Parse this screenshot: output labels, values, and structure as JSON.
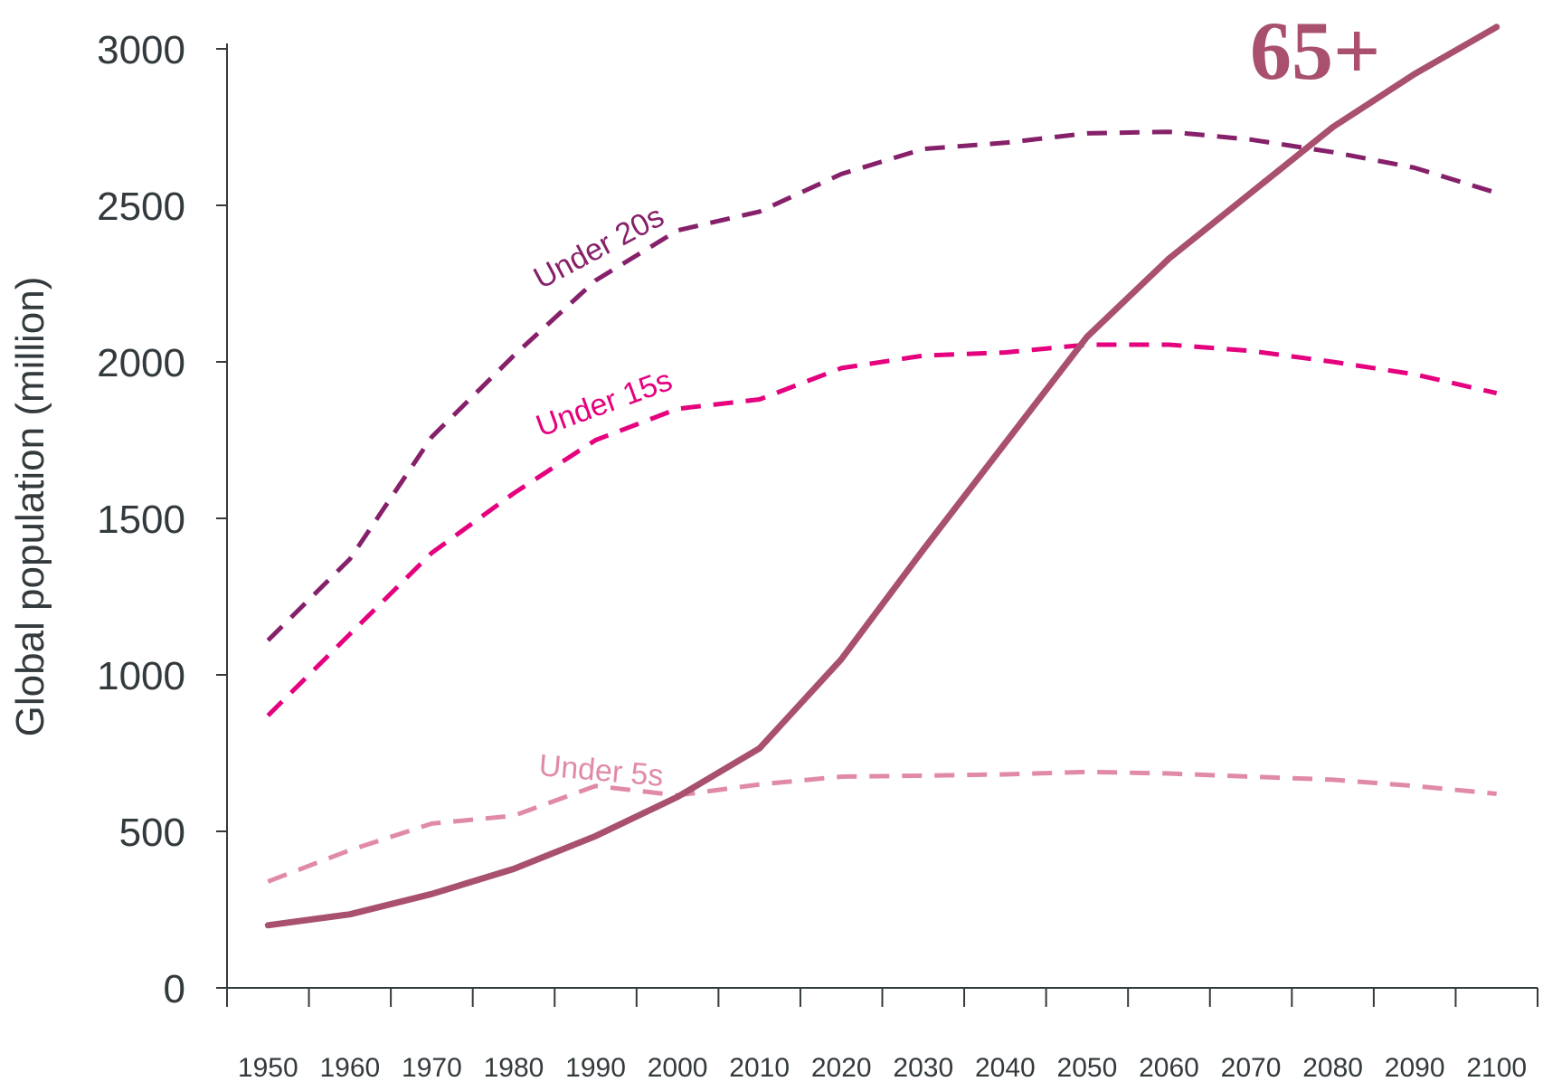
{
  "chart_data": {
    "type": "line",
    "title": "",
    "xlabel": "",
    "ylabel": "Global population (million)",
    "xlim": [
      1945,
      2105
    ],
    "ylim": [
      0,
      3000
    ],
    "x_ticks": [
      "1950",
      "1960",
      "1970",
      "1980",
      "1990",
      "2000",
      "2010",
      "2020",
      "2030",
      "2040",
      "2050",
      "2060",
      "2070",
      "2080",
      "2090",
      "2100"
    ],
    "y_ticks": [
      0,
      500,
      1000,
      1500,
      2000,
      2500,
      3000
    ],
    "grid": false,
    "series": [
      {
        "name": "Under 20s",
        "style": "dashed",
        "color": "#86206a",
        "x": [
          1950,
          1960,
          1970,
          1980,
          1990,
          2000,
          2010,
          2020,
          2030,
          2040,
          2050,
          2060,
          2070,
          2080,
          2090,
          2100
        ],
        "values": [
          1110,
          1370,
          1760,
          2020,
          2260,
          2420,
          2480,
          2600,
          2680,
          2700,
          2730,
          2735,
          2710,
          2670,
          2620,
          2540
        ]
      },
      {
        "name": "Under 15s",
        "style": "dashed",
        "color": "#e5007e",
        "x": [
          1950,
          1960,
          1970,
          1980,
          1990,
          2000,
          2010,
          2020,
          2030,
          2040,
          2050,
          2060,
          2070,
          2080,
          2090,
          2100
        ],
        "values": [
          870,
          1130,
          1390,
          1580,
          1750,
          1850,
          1880,
          1980,
          2020,
          2030,
          2055,
          2055,
          2035,
          2000,
          1960,
          1900
        ]
      },
      {
        "name": "Under 5s",
        "style": "dashed",
        "color": "#e08aa8",
        "x": [
          1950,
          1960,
          1970,
          1980,
          1990,
          2000,
          2010,
          2020,
          2030,
          2040,
          2050,
          2060,
          2070,
          2080,
          2090,
          2100
        ],
        "values": [
          340,
          440,
          525,
          550,
          645,
          615,
          650,
          675,
          678,
          682,
          690,
          685,
          675,
          665,
          645,
          620
        ]
      },
      {
        "name": "65+",
        "style": "solid",
        "color": "#a8506e",
        "x": [
          1950,
          1960,
          1970,
          1980,
          1990,
          2000,
          2010,
          2020,
          2030,
          2040,
          2050,
          2060,
          2070,
          2080,
          2090,
          2100
        ],
        "values": [
          200,
          235,
          300,
          380,
          485,
          610,
          765,
          1050,
          1400,
          1740,
          2080,
          2330,
          2540,
          2750,
          2920,
          3070
        ]
      }
    ],
    "labels": {
      "under20": "Under 20s",
      "under15": "Under 15s",
      "under5": "Under 5s",
      "over65": "65+"
    }
  }
}
